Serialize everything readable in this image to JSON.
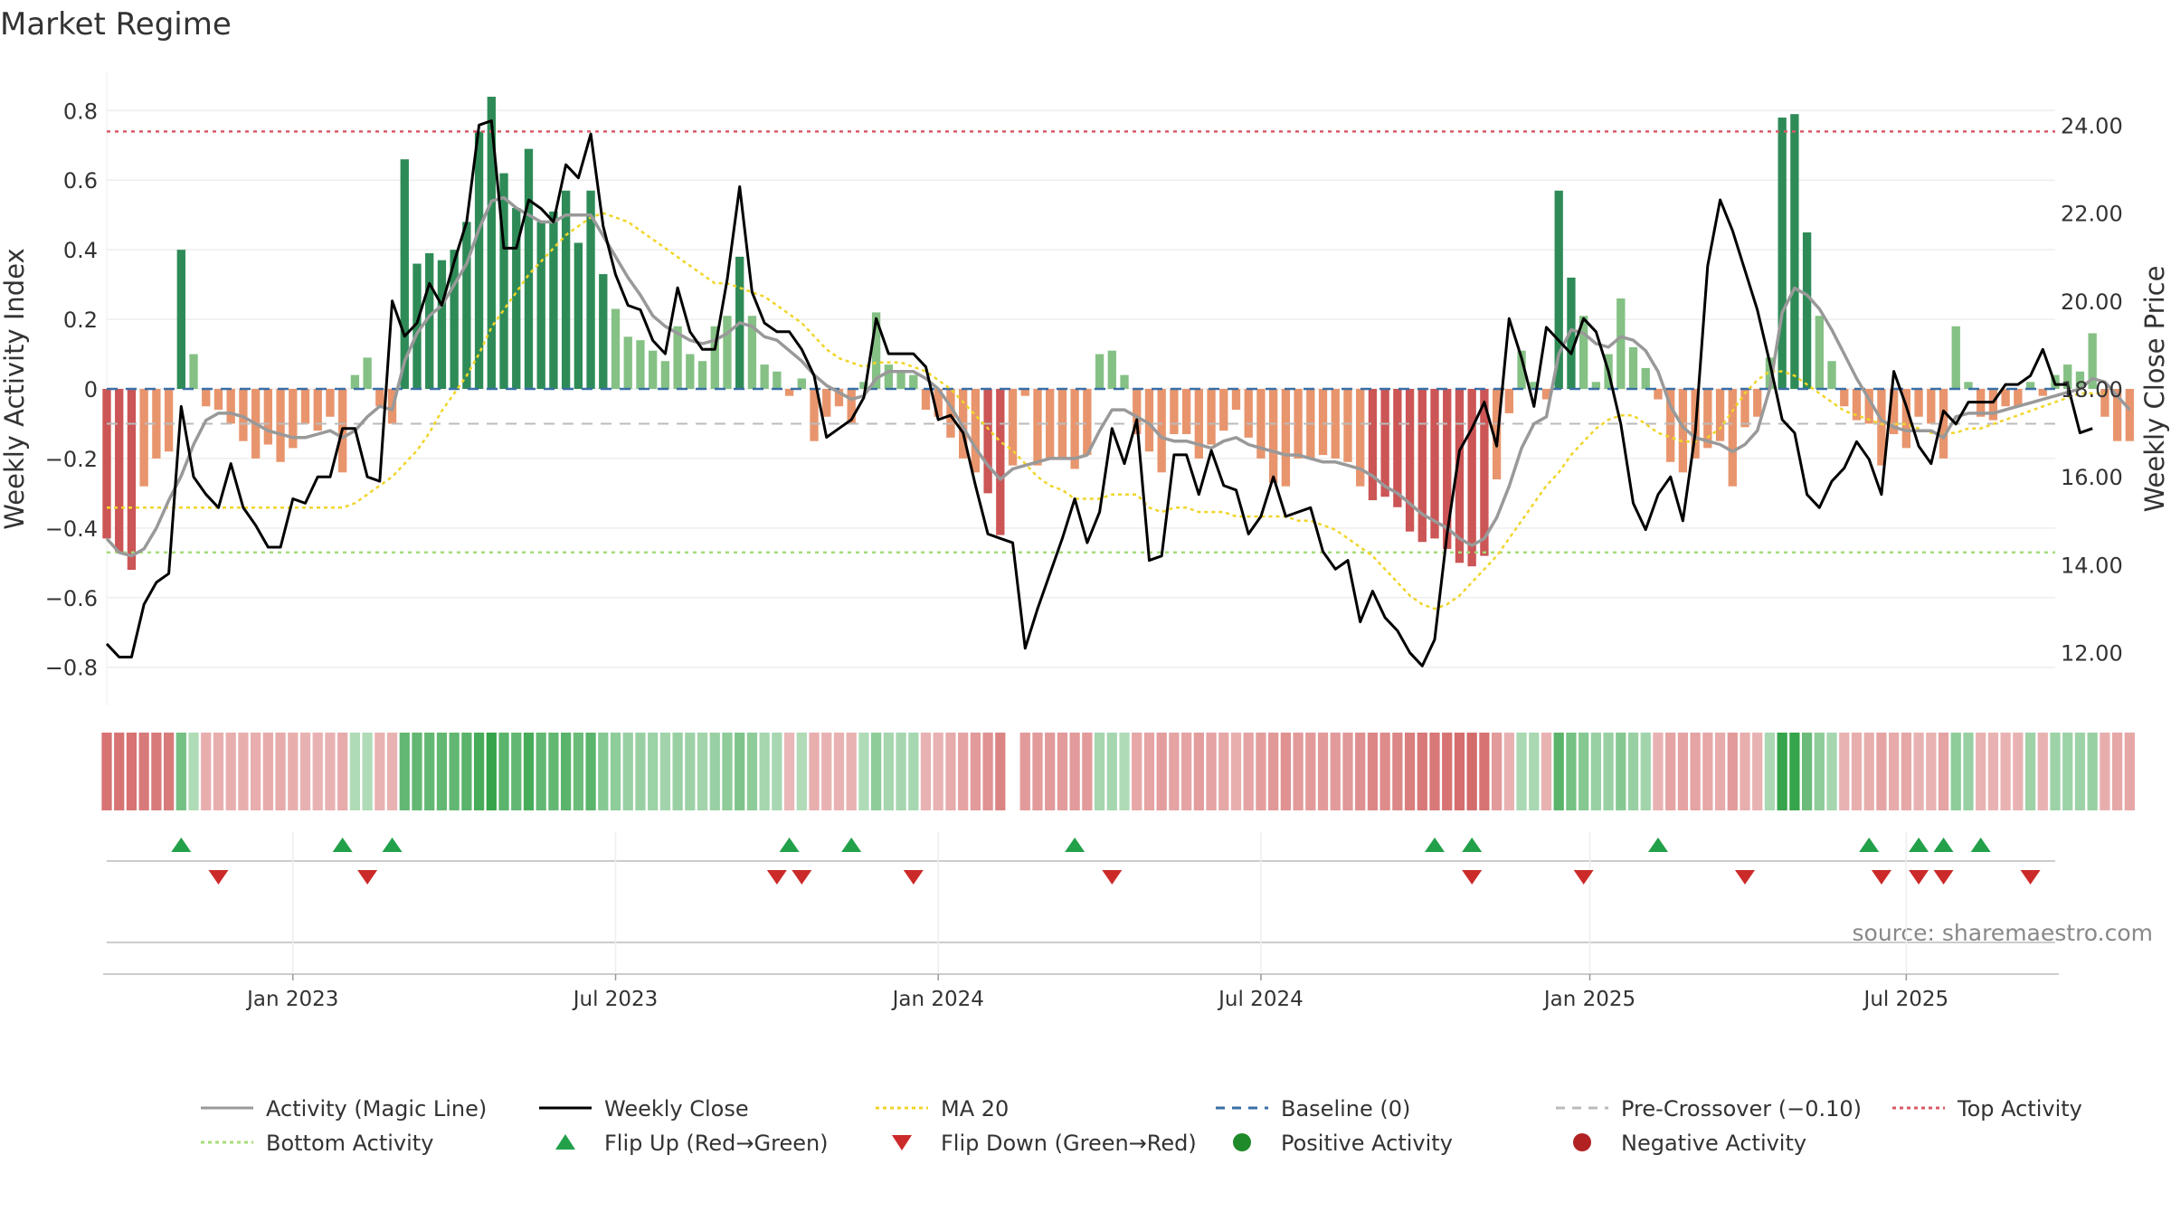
{
  "chart_data": {
    "type": "bar",
    "title": "Market Regime",
    "ylabel_left": "Weekly Activity Index",
    "ylabel_right": "Weekly Close Price",
    "source": "source: sharemaestro.com",
    "ylim_left": [
      -0.91,
      0.91
    ],
    "ylim_right": [
      10.8,
      25.2
    ],
    "y_ticks_left": [
      {
        "v": 0.8,
        "label": "0.8"
      },
      {
        "v": 0.6,
        "label": "0.6"
      },
      {
        "v": 0.4,
        "label": "0.4"
      },
      {
        "v": 0.2,
        "label": "0.2"
      },
      {
        "v": 0,
        "label": "0"
      },
      {
        "v": -0.2,
        "label": "−0.2"
      },
      {
        "v": -0.4,
        "label": "−0.4"
      },
      {
        "v": -0.6,
        "label": "−0.6"
      },
      {
        "v": -0.8,
        "label": "−0.8"
      }
    ],
    "y_ticks_right": [
      {
        "v": 24,
        "label": "24.00"
      },
      {
        "v": 22,
        "label": "22.00"
      },
      {
        "v": 20,
        "label": "20.00"
      },
      {
        "v": 18,
        "label": "18.00"
      },
      {
        "v": 16,
        "label": "16.00"
      },
      {
        "v": 14,
        "label": "14.00"
      },
      {
        "v": 12,
        "label": "12.00"
      }
    ],
    "x_ticks": [
      {
        "week": 15,
        "label": "Jan 2023"
      },
      {
        "week": 41,
        "label": "Jul 2023"
      },
      {
        "week": 67,
        "label": "Jan 2024"
      },
      {
        "week": 93,
        "label": "Jul 2024"
      },
      {
        "week": 119.5,
        "label": "Jan 2025"
      },
      {
        "week": 145,
        "label": "Jul 2025"
      }
    ],
    "weeks": 158,
    "reference_lines": {
      "top_activity": 0.74,
      "bottom_activity": -0.47,
      "pre_crossover": -0.1,
      "baseline": 0
    },
    "activity": [
      -0.43,
      -0.47,
      -0.52,
      -0.28,
      -0.2,
      -0.18,
      0.4,
      0.1,
      -0.05,
      -0.06,
      -0.1,
      -0.15,
      -0.2,
      -0.16,
      -0.21,
      -0.17,
      -0.1,
      -0.12,
      -0.08,
      -0.24,
      0.04,
      0.09,
      -0.05,
      -0.1,
      0.66,
      0.36,
      0.39,
      0.37,
      0.4,
      0.48,
      0.74,
      0.84,
      0.62,
      0.52,
      0.69,
      0.48,
      0.51,
      0.57,
      0.42,
      0.57,
      0.33,
      0.23,
      0.15,
      0.14,
      0.11,
      0.08,
      0.18,
      0.1,
      0.08,
      0.18,
      0.21,
      0.38,
      0.21,
      0.07,
      0.05,
      -0.02,
      0.03,
      -0.15,
      -0.08,
      -0.05,
      -0.1,
      0.02,
      0.22,
      0.07,
      0.05,
      0.04,
      -0.06,
      -0.08,
      -0.14,
      -0.2,
      -0.24,
      -0.3,
      -0.42,
      -0.22,
      -0.02,
      -0.22,
      -0.2,
      -0.2,
      -0.23,
      -0.19,
      0.1,
      0.11,
      0.04,
      -0.13,
      -0.18,
      -0.24,
      -0.13,
      -0.13,
      -0.2,
      -0.16,
      -0.12,
      -0.06,
      -0.14,
      -0.2,
      -0.27,
      -0.28,
      -0.2,
      -0.2,
      -0.19,
      -0.2,
      -0.21,
      -0.28,
      -0.32,
      -0.31,
      -0.34,
      -0.41,
      -0.44,
      -0.43,
      -0.46,
      -0.5,
      -0.51,
      -0.48,
      -0.26,
      -0.07,
      0.11,
      0.02,
      -0.03,
      0.57,
      0.32,
      0.21,
      0.02,
      0.1,
      0.26,
      0.12,
      0.06,
      -0.03,
      -0.21,
      -0.24,
      -0.2,
      -0.17,
      -0.15,
      -0.28,
      -0.11,
      -0.08,
      0.09,
      0.78,
      0.79,
      0.45,
      0.21,
      0.08,
      -0.05,
      -0.09,
      -0.1,
      -0.22,
      -0.13,
      -0.17,
      -0.08,
      -0.1,
      -0.2,
      0.18,
      0.02,
      -0.08,
      -0.09,
      -0.05,
      -0.05,
      0.02,
      -0.02,
      0.04,
      0.07,
      0.05,
      0.16,
      -0.08,
      -0.15,
      -0.15
    ],
    "weekly_close": [
      12.2,
      11.9,
      11.9,
      13.1,
      13.6,
      13.8,
      17.6,
      16.0,
      15.6,
      15.3,
      16.3,
      15.3,
      14.9,
      14.4,
      14.4,
      15.5,
      15.4,
      16.0,
      16.0,
      17.1,
      17.1,
      16.0,
      15.9,
      20.0,
      19.2,
      19.5,
      20.4,
      19.9,
      20.9,
      21.8,
      24.0,
      24.1,
      21.2,
      21.2,
      22.3,
      22.1,
      21.8,
      23.1,
      22.8,
      23.8,
      21.7,
      20.6,
      19.9,
      19.8,
      19.1,
      18.8,
      20.3,
      19.3,
      18.9,
      18.9,
      20.5,
      22.6,
      20.2,
      19.5,
      19.3,
      19.3,
      18.9,
      18.3,
      16.9,
      17.1,
      17.3,
      17.8,
      19.6,
      18.8,
      18.8,
      18.8,
      18.5,
      17.3,
      17.4,
      17.0,
      15.8,
      14.7,
      14.6,
      14.5,
      12.1,
      13.0,
      13.8,
      14.6,
      15.5,
      14.5,
      15.2,
      17.1,
      16.3,
      17.3,
      14.1,
      14.2,
      16.5,
      16.5,
      15.6,
      16.6,
      15.8,
      15.7,
      14.7,
      15.1,
      16.0,
      15.1,
      15.2,
      15.3,
      14.3,
      13.9,
      14.1,
      12.7,
      13.4,
      12.8,
      12.5,
      12.0,
      11.7,
      12.3,
      14.7,
      16.6,
      17.1,
      17.7,
      16.7,
      19.6,
      18.7,
      17.6,
      19.4,
      19.1,
      18.8,
      19.6,
      19.3,
      18.4,
      17.2,
      15.4,
      14.8,
      15.6,
      16.0,
      15.0,
      17.0,
      20.8,
      22.3,
      21.6,
      20.7,
      19.8,
      18.6,
      17.3,
      17.0,
      15.6,
      15.3,
      15.9,
      16.2,
      16.8,
      16.4,
      15.6,
      18.4,
      17.6,
      16.7,
      16.3,
      17.5,
      17.2,
      17.7,
      17.7,
      17.7,
      18.1,
      18.1,
      18.3,
      18.9,
      18.1,
      18.1,
      17.0,
      17.1
    ],
    "magic_line": [
      -0.43,
      -0.47,
      -0.48,
      -0.46,
      -0.4,
      -0.32,
      -0.25,
      -0.16,
      -0.09,
      -0.07,
      -0.07,
      -0.08,
      -0.1,
      -0.12,
      -0.13,
      -0.14,
      -0.14,
      -0.13,
      -0.12,
      -0.14,
      -0.12,
      -0.08,
      -0.05,
      -0.06,
      0.08,
      0.16,
      0.21,
      0.24,
      0.3,
      0.36,
      0.46,
      0.54,
      0.55,
      0.52,
      0.5,
      0.48,
      0.48,
      0.5,
      0.5,
      0.5,
      0.44,
      0.38,
      0.32,
      0.27,
      0.21,
      0.18,
      0.16,
      0.14,
      0.13,
      0.14,
      0.16,
      0.19,
      0.18,
      0.15,
      0.14,
      0.11,
      0.08,
      0.04,
      0.01,
      -0.01,
      -0.03,
      -0.02,
      0.03,
      0.05,
      0.05,
      0.05,
      0.03,
      0.0,
      -0.05,
      -0.11,
      -0.17,
      -0.22,
      -0.26,
      -0.23,
      -0.22,
      -0.21,
      -0.2,
      -0.2,
      -0.2,
      -0.19,
      -0.12,
      -0.06,
      -0.06,
      -0.08,
      -0.1,
      -0.14,
      -0.15,
      -0.15,
      -0.16,
      -0.17,
      -0.15,
      -0.14,
      -0.16,
      -0.17,
      -0.18,
      -0.19,
      -0.19,
      -0.2,
      -0.21,
      -0.21,
      -0.22,
      -0.23,
      -0.25,
      -0.28,
      -0.3,
      -0.33,
      -0.36,
      -0.38,
      -0.4,
      -0.43,
      -0.45,
      -0.43,
      -0.37,
      -0.28,
      -0.17,
      -0.1,
      -0.08,
      0.1,
      0.17,
      0.16,
      0.13,
      0.12,
      0.15,
      0.14,
      0.11,
      0.05,
      -0.05,
      -0.11,
      -0.14,
      -0.15,
      -0.16,
      -0.18,
      -0.16,
      -0.12,
      0.0,
      0.22,
      0.29,
      0.27,
      0.23,
      0.17,
      0.1,
      0.03,
      -0.03,
      -0.09,
      -0.11,
      -0.12,
      -0.12,
      -0.12,
      -0.14,
      -0.08,
      -0.07,
      -0.07,
      -0.07,
      -0.06,
      -0.05,
      -0.04,
      -0.03,
      -0.02,
      -0.01,
      0.0,
      0.03,
      0.02,
      -0.02,
      -0.06
    ],
    "ma20": [
      15.3,
      15.3,
      15.3,
      15.3,
      15.3,
      15.3,
      15.3,
      15.3,
      15.3,
      15.3,
      15.3,
      15.3,
      15.3,
      15.3,
      15.3,
      15.3,
      15.3,
      15.3,
      15.3,
      15.3,
      15.4,
      15.6,
      15.8,
      16.0,
      16.3,
      16.6,
      17.0,
      17.5,
      17.9,
      18.3,
      18.8,
      19.4,
      19.8,
      20.2,
      20.6,
      20.9,
      21.2,
      21.5,
      21.7,
      21.9,
      22.0,
      21.9,
      21.8,
      21.6,
      21.4,
      21.2,
      21.0,
      20.8,
      20.6,
      20.4,
      20.4,
      20.3,
      20.2,
      20.1,
      19.9,
      19.7,
      19.5,
      19.2,
      18.9,
      18.7,
      18.6,
      18.5,
      18.6,
      18.6,
      18.6,
      18.5,
      18.4,
      18.2,
      18.0,
      17.7,
      17.4,
      17.1,
      16.8,
      16.6,
      16.3,
      16.0,
      15.8,
      15.7,
      15.5,
      15.5,
      15.5,
      15.6,
      15.6,
      15.6,
      15.3,
      15.2,
      15.3,
      15.3,
      15.2,
      15.2,
      15.2,
      15.1,
      15.1,
      15.1,
      15.1,
      15.1,
      15.0,
      15.0,
      14.9,
      14.8,
      14.6,
      14.4,
      14.2,
      13.9,
      13.6,
      13.3,
      13.1,
      13.0,
      13.1,
      13.3,
      13.6,
      13.9,
      14.2,
      14.6,
      15.0,
      15.4,
      15.8,
      16.1,
      16.5,
      16.8,
      17.1,
      17.3,
      17.4,
      17.4,
      17.2,
      17.0,
      16.9,
      16.8,
      16.8,
      16.9,
      17.1,
      17.5,
      17.9,
      18.2,
      18.4,
      18.4,
      18.3,
      18.1,
      17.9,
      17.7,
      17.5,
      17.4,
      17.3,
      17.2,
      17.2,
      17.2,
      17.1,
      17.0,
      17.0,
      17.0,
      17.1,
      17.1,
      17.2,
      17.3,
      17.4,
      17.5,
      17.6,
      17.7,
      17.8,
      17.9,
      17.9,
      17.9
    ],
    "regime_strip": [
      -0.55,
      -0.55,
      -0.55,
      -0.5,
      -0.5,
      -0.5,
      0.45,
      0.12,
      -0.18,
      -0.18,
      -0.18,
      -0.18,
      -0.18,
      -0.2,
      -0.2,
      -0.18,
      -0.15,
      -0.15,
      -0.15,
      -0.2,
      0.12,
      0.12,
      -0.15,
      -0.15,
      0.55,
      0.55,
      0.55,
      0.55,
      0.55,
      0.6,
      0.7,
      0.8,
      0.6,
      0.55,
      0.7,
      0.55,
      0.55,
      0.6,
      0.5,
      0.6,
      0.35,
      0.3,
      0.25,
      0.25,
      0.22,
      0.2,
      0.25,
      0.22,
      0.2,
      0.25,
      0.3,
      0.4,
      0.3,
      0.18,
      0.16,
      -0.12,
      0.12,
      -0.18,
      -0.15,
      -0.15,
      -0.15,
      0.12,
      0.3,
      0.18,
      0.18,
      0.16,
      -0.15,
      -0.15,
      -0.2,
      -0.25,
      -0.3,
      -0.35,
      -0.45,
      null,
      -0.3,
      -0.3,
      -0.3,
      -0.3,
      -0.3,
      -0.3,
      0.18,
      0.18,
      0.12,
      -0.22,
      -0.25,
      -0.28,
      -0.25,
      -0.25,
      -0.28,
      -0.25,
      -0.22,
      -0.18,
      -0.25,
      -0.28,
      -0.32,
      -0.35,
      -0.3,
      -0.3,
      -0.3,
      -0.3,
      -0.32,
      -0.38,
      -0.42,
      -0.4,
      -0.42,
      -0.48,
      -0.52,
      -0.52,
      -0.55,
      -0.58,
      -0.6,
      -0.55,
      -0.3,
      -0.15,
      0.15,
      0.15,
      -0.15,
      0.6,
      0.45,
      0.35,
      0.25,
      0.25,
      0.35,
      0.25,
      0.2,
      -0.15,
      -0.25,
      -0.25,
      -0.25,
      -0.22,
      -0.2,
      -0.3,
      -0.18,
      -0.15,
      0.15,
      0.8,
      0.8,
      0.5,
      0.3,
      0.18,
      -0.15,
      -0.18,
      -0.18,
      -0.25,
      -0.2,
      -0.22,
      -0.15,
      -0.15,
      -0.25,
      0.3,
      0.25,
      -0.15,
      -0.15,
      -0.15,
      -0.15,
      0.22,
      -0.15,
      0.22,
      0.22,
      0.22,
      0.25,
      -0.18,
      -0.22,
      -0.22
    ],
    "flip_up_weeks": [
      6,
      19,
      23,
      55,
      60,
      78,
      107,
      110,
      125,
      142,
      146,
      148,
      151
    ],
    "flip_down_weeks": [
      9,
      21,
      54,
      56,
      65,
      81,
      110,
      119,
      132,
      143,
      146,
      148,
      155
    ],
    "colors": {
      "pos_strong": "#2e8b57",
      "pos_weak": "#85c185",
      "neg_strong": "#cc5555",
      "neg_weak": "#e8956d",
      "strip_pos": "#2ea043",
      "strip_neg": "#c94444",
      "magic_line": "#999999",
      "weekly_close": "#000000",
      "ma20": "#f0d52a",
      "baseline": "#3a6fa6",
      "pre_crossover": "#bbbbbb",
      "top_activity": "#d95a67",
      "bottom_activity": "#a5dc7a",
      "flip_up": "#22a04a",
      "flip_down": "#cc2a2a",
      "positive_dot": "#1f8a2a",
      "negative_dot": "#b22222"
    },
    "legend": [
      {
        "kind": "line",
        "color": "#999999",
        "dash": "",
        "label": "Activity (Magic Line)"
      },
      {
        "kind": "line",
        "color": "#000000",
        "dash": "",
        "label": "Weekly Close"
      },
      {
        "kind": "line",
        "color": "#f0d52a",
        "dash": "4,4",
        "label": "MA 20"
      },
      {
        "kind": "line",
        "color": "#3a6fa6",
        "dash": "10,8",
        "label": "Baseline (0)"
      },
      {
        "kind": "line",
        "color": "#bbbbbb",
        "dash": "10,8",
        "label": "Pre-Crossover (−0.10)"
      },
      {
        "kind": "line",
        "color": "#d95a67",
        "dash": "4,4",
        "label": "Top Activity"
      },
      {
        "kind": "line",
        "color": "#a5dc7a",
        "dash": "4,4",
        "label": "Bottom Activity"
      },
      {
        "kind": "up",
        "color": "#22a04a",
        "dash": "",
        "label": "Flip Up (Red→Green)"
      },
      {
        "kind": "down",
        "color": "#cc2a2a",
        "dash": "",
        "label": "Flip Down (Green→Red)"
      },
      {
        "kind": "dot",
        "color": "#1f8a2a",
        "dash": "",
        "label": "Positive Activity"
      },
      {
        "kind": "dot",
        "color": "#b22222",
        "dash": "",
        "label": "Negative Activity"
      }
    ]
  }
}
